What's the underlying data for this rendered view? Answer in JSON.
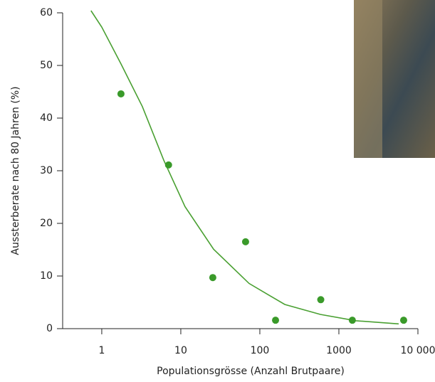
{
  "chart_data": {
    "type": "scatter",
    "x_label": "Populationsgrösse (Anzahl Brutpaare)",
    "y_label": "Aussterberate nach 80 Jahren (%)",
    "xscale": "log",
    "xlim": [
      0.32,
      10000
    ],
    "xticks": [
      1,
      10,
      100,
      1000,
      {
        "value": 10000,
        "label": "10 000"
      }
    ],
    "ylim": [
      0,
      60
    ],
    "yticks": [
      0,
      10,
      20,
      30,
      40,
      50,
      60
    ],
    "points": {
      "color": "#3a9a2a",
      "x": [
        1.75,
        7.0,
        25.4,
        66,
        158,
        590,
        1480,
        6600
      ],
      "y": [
        44.6,
        31.1,
        9.7,
        16.5,
        1.6,
        5.5,
        1.6,
        1.6
      ]
    },
    "curve": {
      "color": "#4aa032",
      "x": [
        0.73,
        1,
        1.75,
        3.26,
        6.08,
        11.3,
        26,
        73,
        207,
        583,
        1645,
        5710
      ],
      "y": [
        60.4,
        57.3,
        50.3,
        42.2,
        32,
        23.2,
        15.1,
        8.6,
        4.6,
        2.7,
        1.5,
        0.9
      ]
    }
  }
}
